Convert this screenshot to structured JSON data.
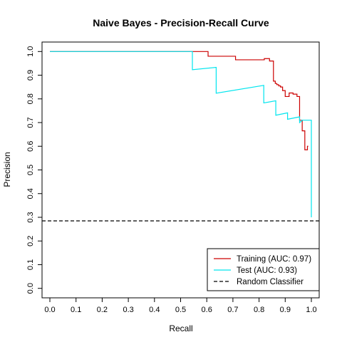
{
  "chart_data": {
    "type": "line",
    "title": "Naive Bayes - Precision-Recall Curve",
    "xlabel": "Recall",
    "ylabel": "Precision",
    "xlim": [
      -0.03,
      1.03
    ],
    "ylim": [
      -0.04,
      1.04
    ],
    "x_ticks": [
      0.0,
      0.1,
      0.2,
      0.3,
      0.4,
      0.5,
      0.6,
      0.7,
      0.8,
      0.9,
      1.0
    ],
    "x_tick_labels": [
      "0.0",
      "0.1",
      "0.2",
      "0.3",
      "0.4",
      "0.5",
      "0.6",
      "0.7",
      "0.8",
      "0.9",
      "1.0"
    ],
    "y_ticks": [
      0.0,
      0.1,
      0.2,
      0.3,
      0.4,
      0.5,
      0.6,
      0.7,
      0.8,
      0.9,
      1.0
    ],
    "y_tick_labels": [
      "0.0",
      "0.1",
      "0.2",
      "0.3",
      "0.4",
      "0.5",
      "0.6",
      "0.7",
      "0.8",
      "0.9",
      "1.0"
    ],
    "grid": false,
    "legend_position": "bottom-right",
    "series": [
      {
        "name": "Training (AUC: 0.97)",
        "color": "#cc0000",
        "style": "step",
        "x": [
          0.0,
          0.545,
          0.545,
          0.605,
          0.605,
          0.71,
          0.71,
          0.82,
          0.82,
          0.84,
          0.84,
          0.855,
          0.855,
          0.862,
          0.862,
          0.868,
          0.868,
          0.875,
          0.875,
          0.882,
          0.882,
          0.89,
          0.89,
          0.9,
          0.9,
          0.915,
          0.915,
          0.93,
          0.93,
          0.945,
          0.945,
          0.955,
          0.955,
          0.965,
          0.965,
          0.975,
          0.975,
          0.985,
          0.985,
          0.988
        ],
        "y": [
          1.0,
          1.0,
          1.0,
          1.0,
          0.98,
          0.98,
          0.965,
          0.965,
          0.97,
          0.97,
          0.96,
          0.96,
          0.875,
          0.875,
          0.865,
          0.865,
          0.86,
          0.86,
          0.855,
          0.855,
          0.85,
          0.85,
          0.835,
          0.835,
          0.81,
          0.81,
          0.825,
          0.825,
          0.82,
          0.82,
          0.81,
          0.81,
          0.71,
          0.71,
          0.665,
          0.665,
          0.585,
          0.585,
          0.6,
          0.6
        ]
      },
      {
        "name": "Test (AUC: 0.93)",
        "color": "#00e5ee",
        "style": "step",
        "x": [
          0.0,
          0.545,
          0.545,
          0.636,
          0.636,
          0.818,
          0.818,
          0.864,
          0.864,
          0.909,
          0.909,
          0.955,
          0.955,
          0.963,
          0.963,
          1.0,
          1.0
        ],
        "y": [
          1.0,
          1.0,
          0.923,
          0.933,
          0.824,
          0.857,
          0.783,
          0.792,
          0.731,
          0.741,
          0.714,
          0.724,
          0.7,
          0.707,
          0.71,
          0.71,
          0.3
        ]
      },
      {
        "name": "Random Classifier",
        "color": "#000000",
        "style": "dashed",
        "x": [
          -0.03,
          1.03
        ],
        "y": [
          0.285,
          0.285
        ]
      }
    ]
  }
}
